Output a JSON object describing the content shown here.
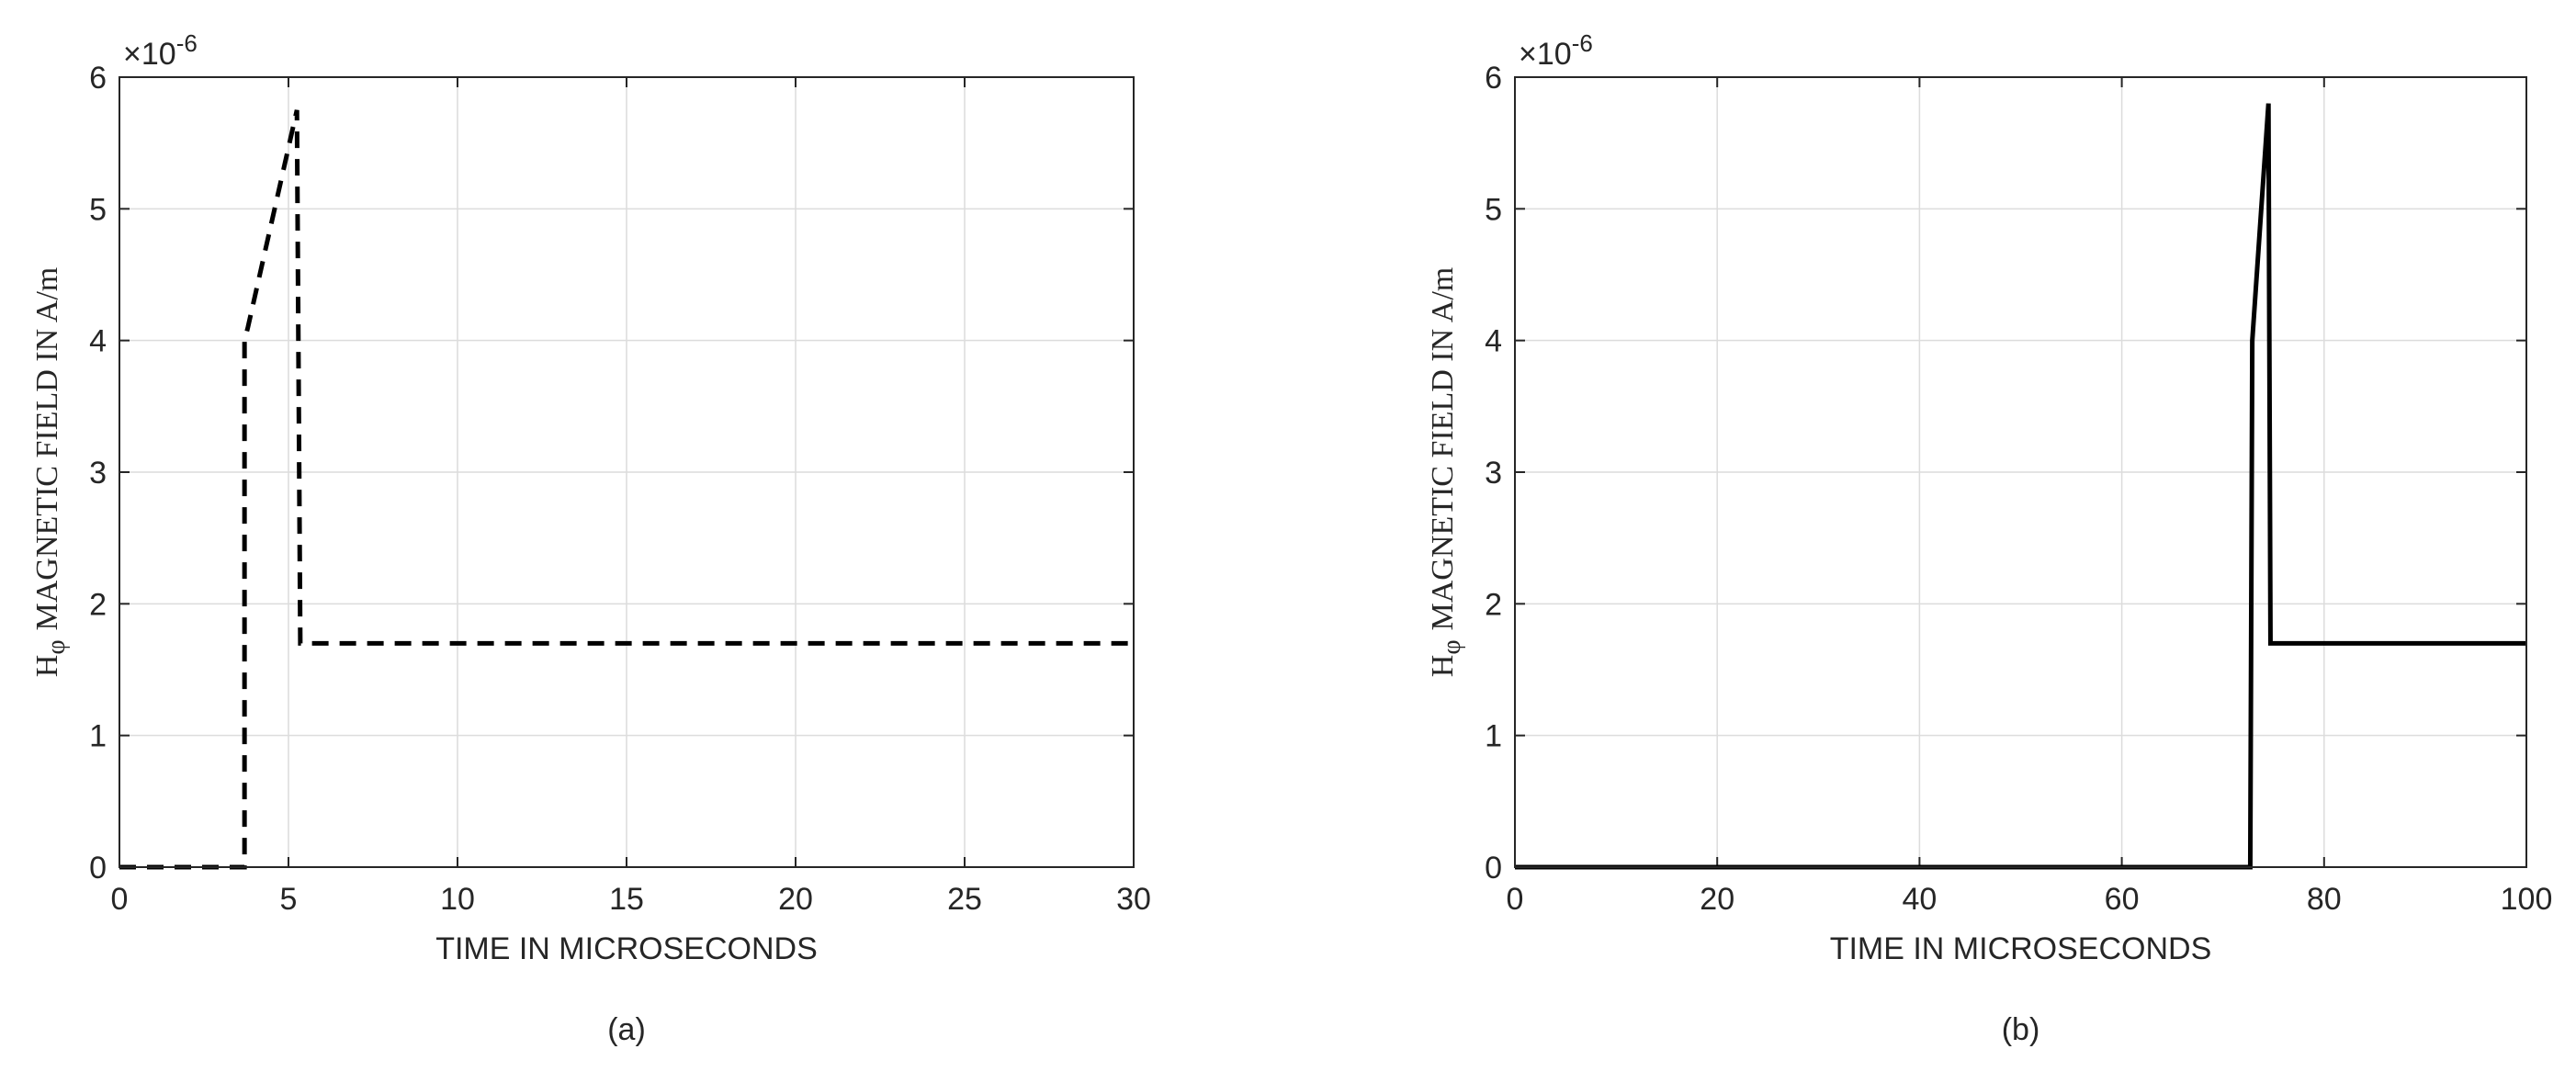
{
  "chart_data": [
    {
      "type": "line",
      "caption": "(a)",
      "xlabel": "TIME IN MICROSECONDS",
      "ylabel_symbol": "H",
      "ylabel_subscript": "φ",
      "ylabel": "MAGNETIC FIELD IN A/m",
      "y_multiplier_base": "×10",
      "y_multiplier_exponent": "-6",
      "x": [
        0,
        3.7,
        3.7,
        3.8,
        5.25,
        5.35,
        30
      ],
      "values": [
        0,
        0,
        4,
        4.1,
        5.75,
        1.7,
        1.7
      ],
      "color": "#000000",
      "line_style": "dashed",
      "xlim": [
        0,
        30
      ],
      "xticks": [
        0,
        5,
        10,
        15,
        20,
        25,
        30
      ],
      "ylim": [
        0,
        6
      ],
      "yticks": [
        0,
        1,
        2,
        3,
        4,
        5,
        6
      ],
      "grid": true
    },
    {
      "type": "line",
      "caption": "(b)",
      "xlabel": "TIME IN MICROSECONDS",
      "ylabel_symbol": "H",
      "ylabel_subscript": "φ",
      "ylabel": "MAGNETIC FIELD IN A/m",
      "y_multiplier_base": "×10",
      "y_multiplier_exponent": "-6",
      "x": [
        0,
        72.7,
        72.9,
        74.5,
        74.7,
        100
      ],
      "values": [
        0,
        0,
        4,
        5.8,
        1.7,
        1.7
      ],
      "color": "#000000",
      "line_style": "solid",
      "xlim": [
        0,
        100
      ],
      "xticks": [
        0,
        20,
        40,
        60,
        80,
        100
      ],
      "ylim": [
        0,
        6
      ],
      "yticks": [
        0,
        1,
        2,
        3,
        4,
        5,
        6
      ],
      "grid": true
    }
  ]
}
